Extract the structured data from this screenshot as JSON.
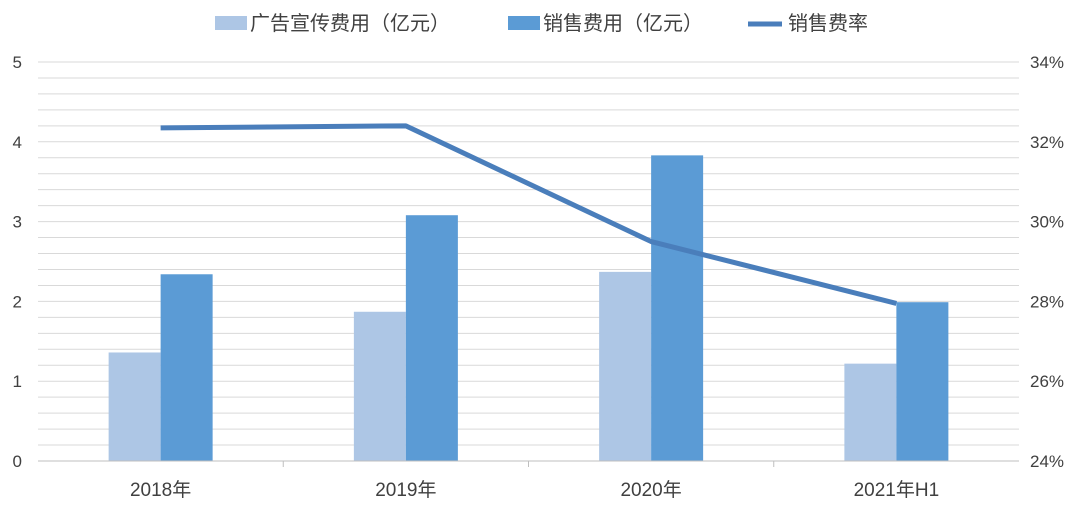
{
  "chart_data": {
    "type": "bar",
    "categories": [
      "2018年",
      "2019年",
      "2020年",
      "2021年H1"
    ],
    "series": [
      {
        "name": "广告宣传费用（亿元）",
        "type": "bar",
        "axis": "left",
        "color": "#adc6e5",
        "values": [
          1.36,
          1.87,
          2.37,
          1.22
        ]
      },
      {
        "name": "销售费用（亿元）",
        "type": "bar",
        "axis": "left",
        "color": "#5b9bd5",
        "values": [
          2.34,
          3.08,
          3.83,
          1.99
        ]
      },
      {
        "name": "销售费率",
        "type": "line",
        "axis": "right",
        "color": "#4a7ebb",
        "values": [
          32.35,
          32.4,
          29.5,
          27.95
        ]
      }
    ],
    "left_axis": {
      "min": 0,
      "max": 5,
      "step": 1,
      "ticks": [
        "0",
        "1",
        "2",
        "3",
        "4",
        "5"
      ]
    },
    "right_axis": {
      "min": 24,
      "max": 34,
      "step": 2,
      "ticks": [
        "24%",
        "26%",
        "28%",
        "30%",
        "32%",
        "34%"
      ]
    },
    "grid": true,
    "legend_position": "top"
  }
}
